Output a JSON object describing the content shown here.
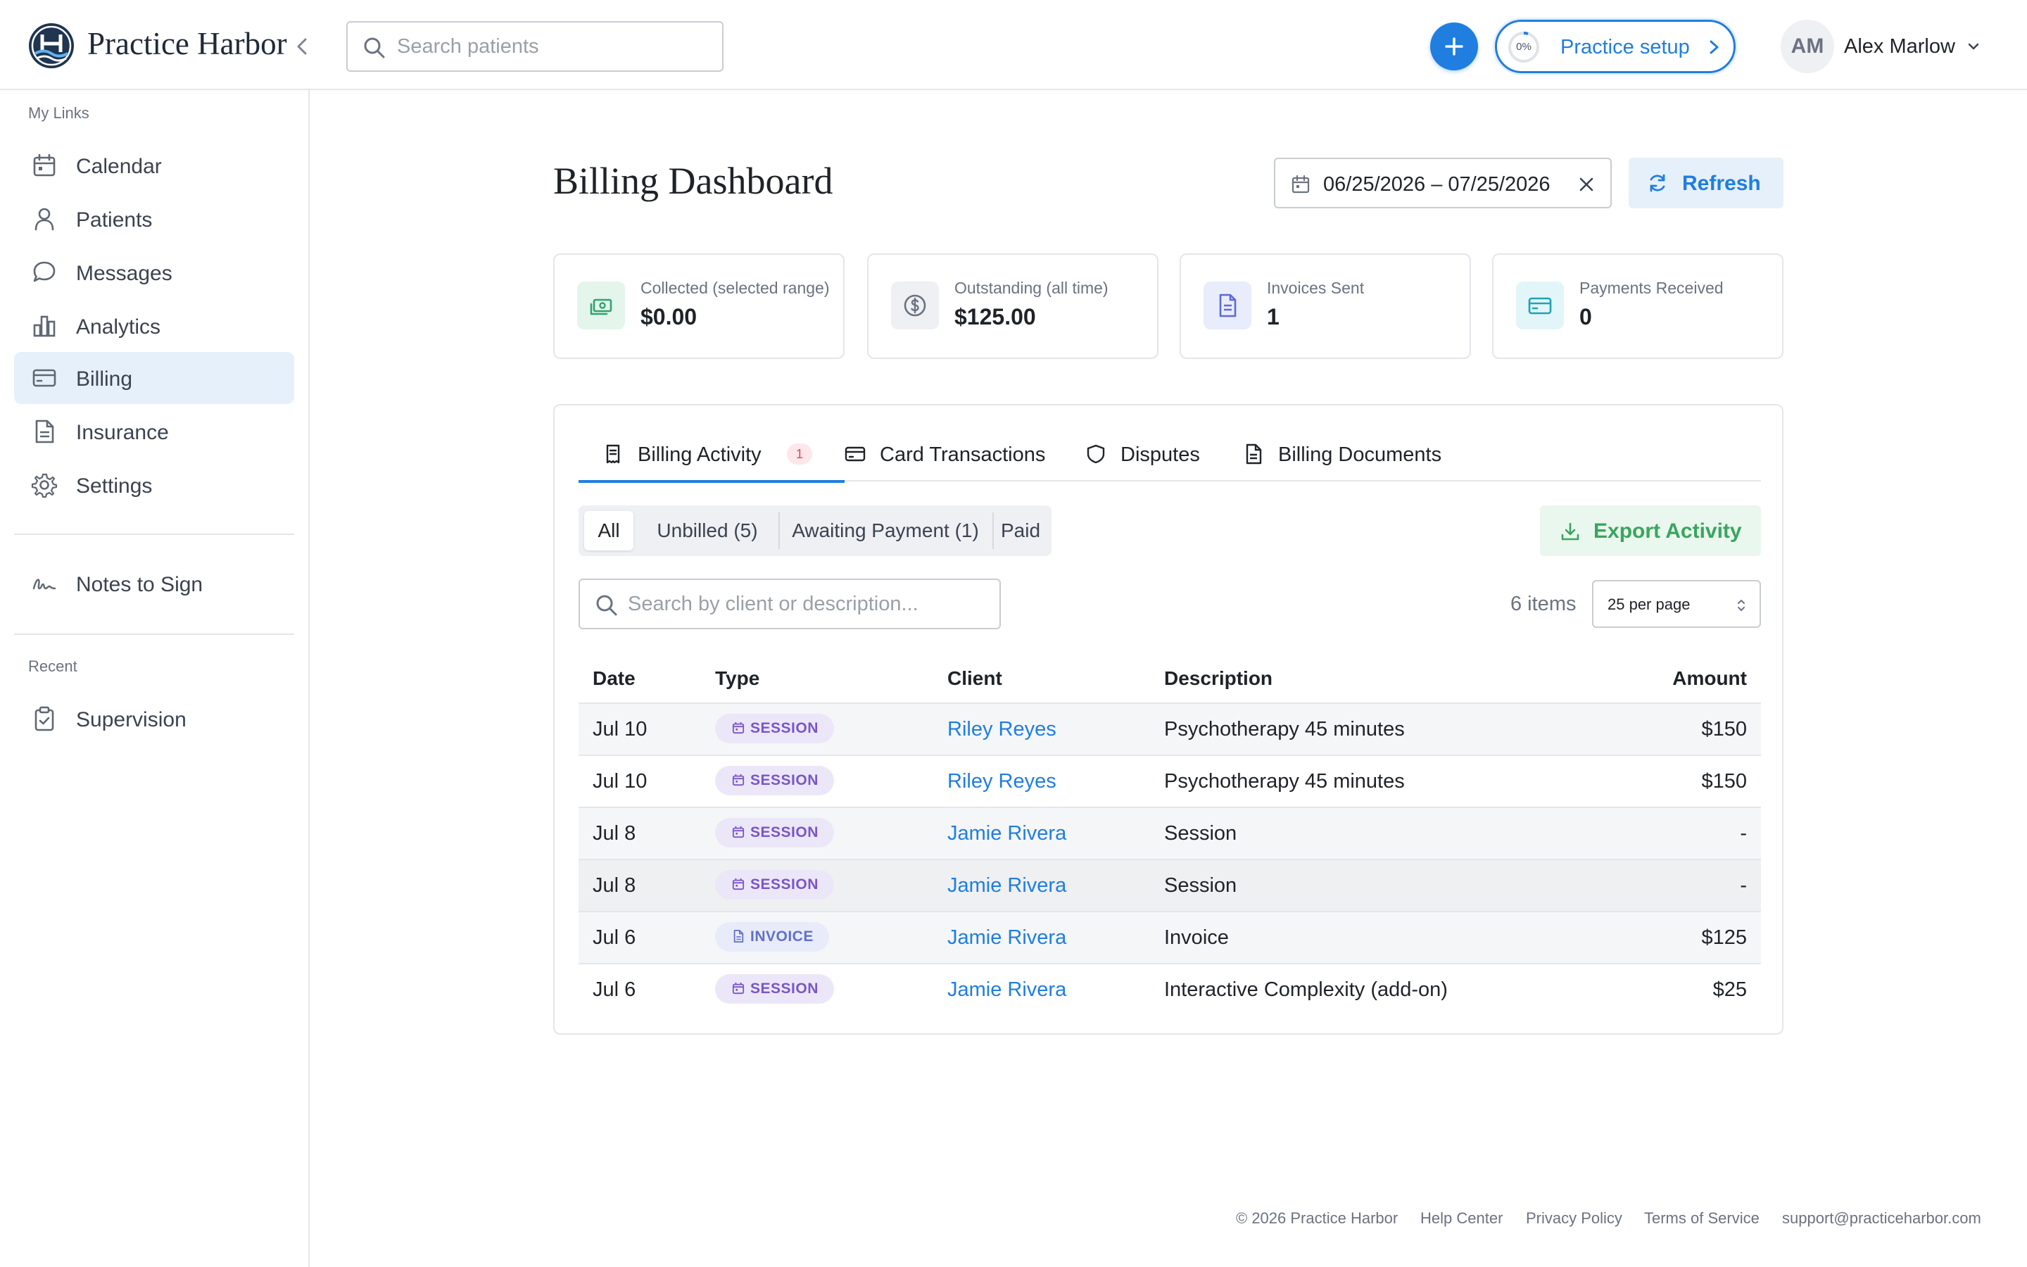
{
  "brand": {
    "name": "Practice Harbor"
  },
  "topbar": {
    "search_placeholder": "Search patients",
    "setup": {
      "percent": "0%",
      "label": "Practice setup"
    },
    "user": {
      "initials": "AM",
      "name": "Alex Marlow"
    }
  },
  "sidebar": {
    "my_links_label": "My Links",
    "items": [
      {
        "label": "Calendar",
        "icon": "calendar-icon"
      },
      {
        "label": "Patients",
        "icon": "user-icon"
      },
      {
        "label": "Messages",
        "icon": "chat-icon"
      },
      {
        "label": "Analytics",
        "icon": "bar-chart-icon"
      },
      {
        "label": "Billing",
        "icon": "credit-card-icon",
        "active": true
      },
      {
        "label": "Insurance",
        "icon": "document-icon"
      },
      {
        "label": "Settings",
        "icon": "gear-icon"
      }
    ],
    "notes_to_sign": {
      "label": "Notes to Sign",
      "icon": "signature-icon"
    },
    "recent_label": "Recent",
    "recent": [
      {
        "label": "Supervision",
        "icon": "clipboard-check-icon"
      }
    ]
  },
  "main": {
    "title": "Billing Dashboard",
    "date_range": "06/25/2026 – 07/25/2026",
    "refresh_label": "Refresh",
    "stats": [
      {
        "label": "Collected (selected range)",
        "value": "$0.00",
        "icon": "cash-icon",
        "color": "#2fa56b",
        "bg": "#e4f5ec"
      },
      {
        "label": "Outstanding (all time)",
        "value": "$125.00",
        "icon": "dollar-circle-icon",
        "color": "#6b7280",
        "bg": "#eef0f3"
      },
      {
        "label": "Invoices Sent",
        "value": "1",
        "icon": "invoice-icon",
        "color": "#5b6cd6",
        "bg": "#e9ecfb"
      },
      {
        "label": "Payments Received",
        "value": "0",
        "icon": "card-icon",
        "color": "#1fa3b8",
        "bg": "#e2f5f8"
      }
    ],
    "tabs": [
      {
        "label": "Billing Activity",
        "badge": "1",
        "active": true
      },
      {
        "label": "Card Transactions"
      },
      {
        "label": "Disputes"
      },
      {
        "label": "Billing Documents"
      }
    ],
    "filters": [
      "All",
      "Unbilled (5)",
      "Awaiting Payment (1)",
      "Paid"
    ],
    "export_label": "Export Activity",
    "activity_search_placeholder": "Search by client or description...",
    "items_count": "6 items",
    "per_page": "25 per page",
    "table": {
      "columns": [
        "Date",
        "Type",
        "Client",
        "Description",
        "Amount"
      ],
      "rows": [
        {
          "date": "Jul 10",
          "type": "SESSION",
          "client": "Riley Reyes",
          "description": "Psychotherapy 45 minutes",
          "amount": "$150"
        },
        {
          "date": "Jul 10",
          "type": "SESSION",
          "client": "Riley Reyes",
          "description": "Psychotherapy 45 minutes",
          "amount": "$150"
        },
        {
          "date": "Jul 8",
          "type": "SESSION",
          "client": "Jamie Rivera",
          "description": "Session",
          "amount": "-"
        },
        {
          "date": "Jul 8",
          "type": "SESSION",
          "client": "Jamie Rivera",
          "description": "Session",
          "amount": "-"
        },
        {
          "date": "Jul 6",
          "type": "INVOICE",
          "client": "Jamie Rivera",
          "description": "Invoice",
          "amount": "$125"
        },
        {
          "date": "Jul 6",
          "type": "SESSION",
          "client": "Jamie Rivera",
          "description": "Interactive Complexity (add-on)",
          "amount": "$25"
        }
      ]
    }
  },
  "footer": {
    "copyright": "© 2026 Practice Harbor",
    "help": "Help Center",
    "privacy": "Privacy Policy",
    "terms": "Terms of Service",
    "email": "support@practiceharbor.com"
  },
  "colors": {
    "accent": "#1f7ee0",
    "active_nav_bg": "#e6f0fa",
    "export_green": "#3aa55f",
    "session_purple": "#7a55c9"
  }
}
